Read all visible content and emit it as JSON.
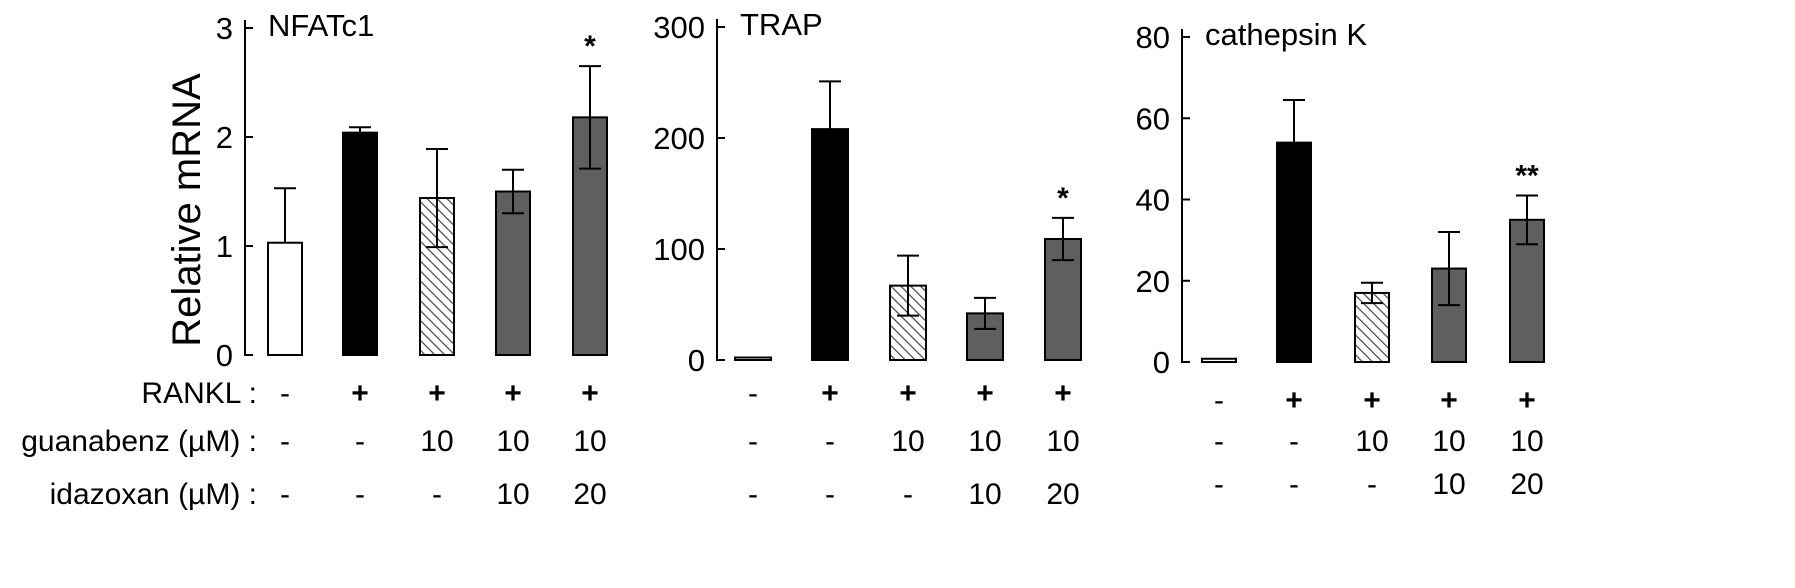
{
  "ylabel": "Relative mRNA",
  "conditions": {
    "rankl": {
      "label": "RANKL :",
      "values": [
        "-",
        "+",
        "+",
        "+",
        "+"
      ]
    },
    "guanabenz": {
      "label": "guanabenz (µM) :",
      "values": [
        "-",
        "-",
        "10",
        "10",
        "10"
      ]
    },
    "idazoxan": {
      "label": "idazoxan (µM) :",
      "values": [
        "-",
        "-",
        "-",
        "10",
        "20"
      ]
    }
  },
  "colors": {
    "control": "#ffffff",
    "rankl": "#000000",
    "guanabenz": "hatched",
    "combo": "#5f5f5f",
    "axis": "#000000"
  },
  "chart_data": [
    {
      "type": "bar",
      "title": "NFATc1",
      "ylabel": "Relative mRNA",
      "ylim": [
        0,
        3
      ],
      "yticks": [
        0,
        1,
        2,
        3
      ],
      "values": [
        1.03,
        2.04,
        1.44,
        1.5,
        2.18
      ],
      "errors": [
        0.5,
        0.05,
        0.45,
        0.2,
        0.47
      ],
      "fills": [
        "white",
        "black",
        "hatched",
        "gray",
        "gray"
      ],
      "significance": [
        "",
        "",
        "",
        "",
        "*"
      ]
    },
    {
      "type": "bar",
      "title": "TRAP",
      "ylabel": "",
      "ylim": [
        0,
        300
      ],
      "yticks": [
        0,
        100,
        200,
        300
      ],
      "values": [
        1,
        208,
        67,
        42,
        109
      ],
      "errors": [
        0,
        43,
        27,
        14,
        19
      ],
      "fills": [
        "white",
        "black",
        "hatched",
        "gray",
        "gray"
      ],
      "significance": [
        "",
        "",
        "",
        "",
        "*"
      ]
    },
    {
      "type": "bar",
      "title": "cathepsin K",
      "ylabel": "",
      "ylim": [
        0,
        80
      ],
      "yticks": [
        0,
        20,
        40,
        60,
        80
      ],
      "values": [
        0.8,
        54,
        17,
        23,
        35
      ],
      "errors": [
        0,
        10.5,
        2.5,
        9,
        6
      ],
      "fills": [
        "white",
        "black",
        "hatched",
        "gray",
        "gray"
      ],
      "significance": [
        "",
        "",
        "",
        "",
        "**"
      ]
    }
  ]
}
